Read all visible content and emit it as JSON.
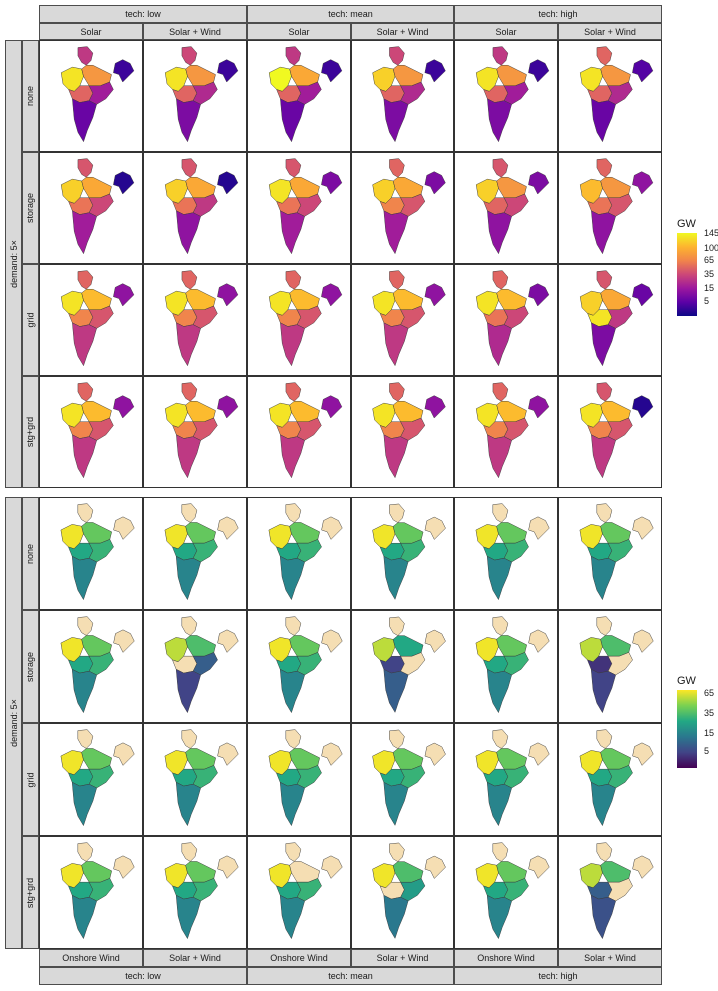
{
  "chart_data": {
    "type": "heatmap",
    "title": "",
    "charts": [
      {
        "name": "top-facet-grid",
        "col_groups": [
          "tech: low",
          "tech: mean",
          "tech: high"
        ],
        "col_labels": [
          "Solar",
          "Solar + Wind",
          "Solar",
          "Solar + Wind",
          "Solar",
          "Solar + Wind"
        ],
        "row_group": "demand: 5×",
        "row_labels": [
          "none",
          "storage",
          "grid",
          "stg+grd"
        ],
        "legend": {
          "title": "GW",
          "ticks": [
            "145",
            "100",
            "65",
            "35",
            "15",
            "5"
          ],
          "palette": "plasma"
        },
        "region_levels": [
          [
            [
              0.45,
              0.95,
              0.75,
              0.6,
              0.35,
              0.2,
              0.1
            ],
            [
              0.5,
              0.95,
              0.75,
              0.6,
              0.4,
              0.25,
              0.1
            ],
            [
              0.45,
              1.0,
              0.8,
              0.6,
              0.35,
              0.2,
              0.1
            ],
            [
              0.5,
              0.9,
              0.75,
              0.6,
              0.4,
              0.25,
              0.1
            ],
            [
              0.45,
              0.95,
              0.75,
              0.6,
              0.35,
              0.25,
              0.1
            ],
            [
              0.6,
              0.95,
              0.75,
              0.6,
              0.4,
              0.2,
              0.15
            ]
          ],
          [
            [
              0.55,
              0.9,
              0.8,
              0.65,
              0.5,
              0.35,
              0.05
            ],
            [
              0.55,
              0.9,
              0.8,
              0.65,
              0.45,
              0.3,
              0.05
            ],
            [
              0.55,
              0.95,
              0.8,
              0.65,
              0.5,
              0.35,
              0.25
            ],
            [
              0.6,
              0.9,
              0.8,
              0.7,
              0.55,
              0.35,
              0.25
            ],
            [
              0.55,
              0.9,
              0.75,
              0.6,
              0.5,
              0.3,
              0.25
            ],
            [
              0.6,
              0.85,
              0.75,
              0.65,
              0.55,
              0.3,
              0.3
            ]
          ],
          [
            [
              0.6,
              0.95,
              0.85,
              0.7,
              0.55,
              0.45,
              0.3
            ],
            [
              0.6,
              0.95,
              0.85,
              0.7,
              0.55,
              0.45,
              0.3
            ],
            [
              0.6,
              0.95,
              0.85,
              0.7,
              0.55,
              0.45,
              0.3
            ],
            [
              0.6,
              0.95,
              0.85,
              0.7,
              0.55,
              0.45,
              0.3
            ],
            [
              0.6,
              0.95,
              0.85,
              0.65,
              0.5,
              0.4,
              0.25
            ],
            [
              0.55,
              0.9,
              0.8,
              0.95,
              0.45,
              0.25,
              0.2
            ]
          ],
          [
            [
              0.6,
              0.95,
              0.85,
              0.7,
              0.55,
              0.45,
              0.3
            ],
            [
              0.6,
              0.95,
              0.85,
              0.7,
              0.55,
              0.45,
              0.3
            ],
            [
              0.6,
              0.95,
              0.85,
              0.7,
              0.55,
              0.45,
              0.3
            ],
            [
              0.6,
              0.95,
              0.85,
              0.7,
              0.55,
              0.45,
              0.3
            ],
            [
              0.6,
              0.95,
              0.85,
              0.7,
              0.55,
              0.45,
              0.3
            ],
            [
              0.55,
              0.95,
              0.85,
              0.7,
              0.55,
              0.45,
              0.05
            ]
          ]
        ]
      },
      {
        "name": "bottom-facet-grid",
        "col_groups": [
          "tech: low",
          "tech: mean",
          "tech: high"
        ],
        "col_labels": [
          "Onshore Wind",
          "Solar + Wind",
          "Onshore Wind",
          "Solar + Wind",
          "Onshore Wind",
          "Solar + Wind"
        ],
        "row_group": "demand: 5×",
        "row_labels": [
          "none",
          "storage",
          "grid",
          "stg+grd"
        ],
        "legend": {
          "title": "GW",
          "ticks": [
            "65",
            "35",
            "15",
            "5"
          ],
          "palette": "viridis"
        },
        "region_levels": [
          [
            [
              -1,
              0.98,
              0.75,
              0.6,
              0.65,
              0.45,
              -1
            ],
            [
              -1,
              0.98,
              0.75,
              0.6,
              0.65,
              0.45,
              -1
            ],
            [
              -1,
              0.98,
              0.75,
              0.6,
              0.65,
              0.45,
              -1
            ],
            [
              -1,
              0.98,
              0.75,
              0.6,
              0.65,
              0.45,
              -1
            ],
            [
              -1,
              0.98,
              0.75,
              0.6,
              0.65,
              0.45,
              -1
            ],
            [
              -1,
              0.98,
              0.75,
              0.6,
              0.65,
              0.45,
              -1
            ]
          ],
          [
            [
              -1,
              0.98,
              0.75,
              0.6,
              0.65,
              0.45,
              -1
            ],
            [
              -1,
              0.9,
              0.7,
              -1,
              0.3,
              0.2,
              -1
            ],
            [
              -1,
              0.98,
              0.75,
              0.6,
              0.65,
              0.45,
              -1
            ],
            [
              -1,
              0.9,
              0.6,
              0.2,
              -1,
              0.3,
              -1
            ],
            [
              -1,
              0.98,
              0.75,
              0.6,
              0.65,
              0.45,
              -1
            ],
            [
              -1,
              0.9,
              0.7,
              0.15,
              -1,
              0.2,
              -1
            ]
          ],
          [
            [
              -1,
              0.98,
              0.75,
              0.6,
              0.65,
              0.45,
              -1
            ],
            [
              -1,
              0.98,
              0.75,
              0.6,
              0.65,
              0.45,
              -1
            ],
            [
              -1,
              0.98,
              0.75,
              0.6,
              0.65,
              0.45,
              -1
            ],
            [
              -1,
              0.98,
              0.75,
              0.6,
              0.65,
              0.45,
              -1
            ],
            [
              -1,
              0.98,
              0.75,
              0.6,
              0.65,
              0.45,
              -1
            ],
            [
              -1,
              0.98,
              0.75,
              0.6,
              0.65,
              0.45,
              -1
            ]
          ],
          [
            [
              -1,
              0.98,
              0.75,
              0.6,
              0.65,
              0.45,
              -1
            ],
            [
              -1,
              0.98,
              0.75,
              0.6,
              0.65,
              0.45,
              -1
            ],
            [
              -1,
              0.98,
              -1,
              0.6,
              0.65,
              0.45,
              -1
            ],
            [
              -1,
              0.98,
              0.7,
              -1,
              0.55,
              0.4,
              -1
            ],
            [
              -1,
              0.98,
              0.75,
              0.6,
              0.65,
              0.45,
              -1
            ],
            [
              -1,
              0.9,
              0.7,
              0.3,
              -1,
              0.25,
              -1
            ]
          ]
        ]
      }
    ]
  }
}
